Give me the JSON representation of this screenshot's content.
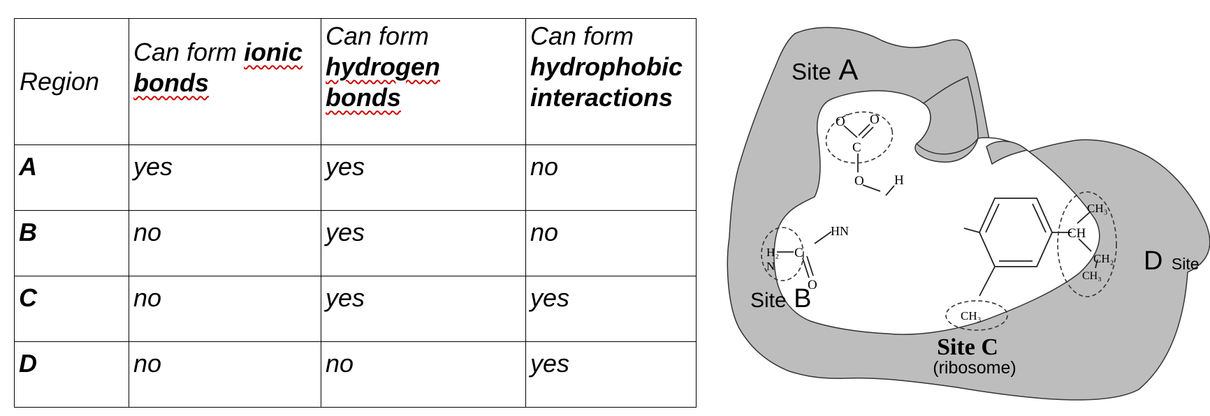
{
  "table": {
    "headers": {
      "region": "Region",
      "ionic": {
        "prefix": "Can form",
        "keyword": "ionic",
        "suffix": "bonds"
      },
      "hydrogen": {
        "prefix": "Can form",
        "keyword": "hydrogen",
        "suffix": "bonds"
      },
      "hydrophobic": {
        "prefix": "Can form",
        "keyword": "hydrophobic",
        "suffix": "interactions"
      }
    },
    "rows": [
      {
        "region": "A",
        "ionic": "yes",
        "hydrogen": "yes",
        "hydrophobic": "no"
      },
      {
        "region": "B",
        "ionic": "no",
        "hydrogen": "yes",
        "hydrophobic": "no"
      },
      {
        "region": "C",
        "ionic": "no",
        "hydrogen": "yes",
        "hydrophobic": "yes"
      },
      {
        "region": "D",
        "ionic": "no",
        "hydrogen": "no",
        "hydrophobic": "yes"
      }
    ]
  },
  "diagram": {
    "site_a": {
      "word": "Site",
      "letter": "A"
    },
    "site_b": {
      "word": "Site",
      "letter": "B"
    },
    "site_c": {
      "label": "Site C",
      "note": "(ribosome)"
    },
    "site_d": {
      "letter": "D",
      "word": "Site"
    },
    "molecule": {
      "carboxylate_o_minus": "O",
      "charge": "-",
      "carboxylate_o": "O",
      "carboxylate_c": "C",
      "ester_o": "O",
      "ring_h": "H",
      "amide_nh": "HN",
      "amide_c": "C",
      "amide_o": "O",
      "amine_h2": "H₂",
      "amine_n": "N",
      "methyl": "CH₃",
      "branch_ch": "CH",
      "branch_ch3_top": "CH₃",
      "branch_ch2": "CH₂",
      "branch_ch3_bottom": "CH₃"
    }
  }
}
